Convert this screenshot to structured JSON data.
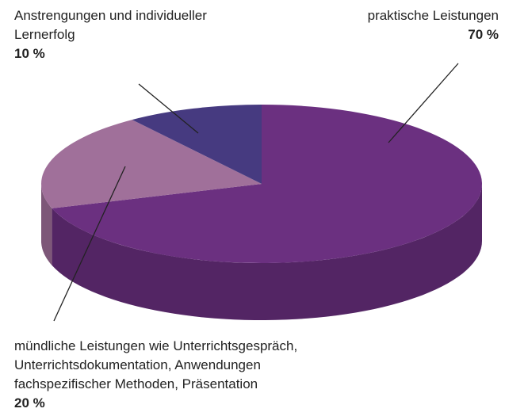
{
  "chart_data": {
    "type": "pie3d",
    "categories": [
      "praktische Leistungen",
      "mündliche Leistungen wie Unterrichtsgespräch, Unterrichtsdokumentation, Anwendungen fachspezifischer Methoden, Präsentation",
      "Anstrengungen und individueller Lernerfolg"
    ],
    "values": [
      70,
      20,
      10
    ],
    "value_labels": [
      "70 %",
      "20 %",
      "10 %"
    ],
    "colors": [
      "#6b3080",
      "#a0709a",
      "#463a80"
    ]
  }
}
